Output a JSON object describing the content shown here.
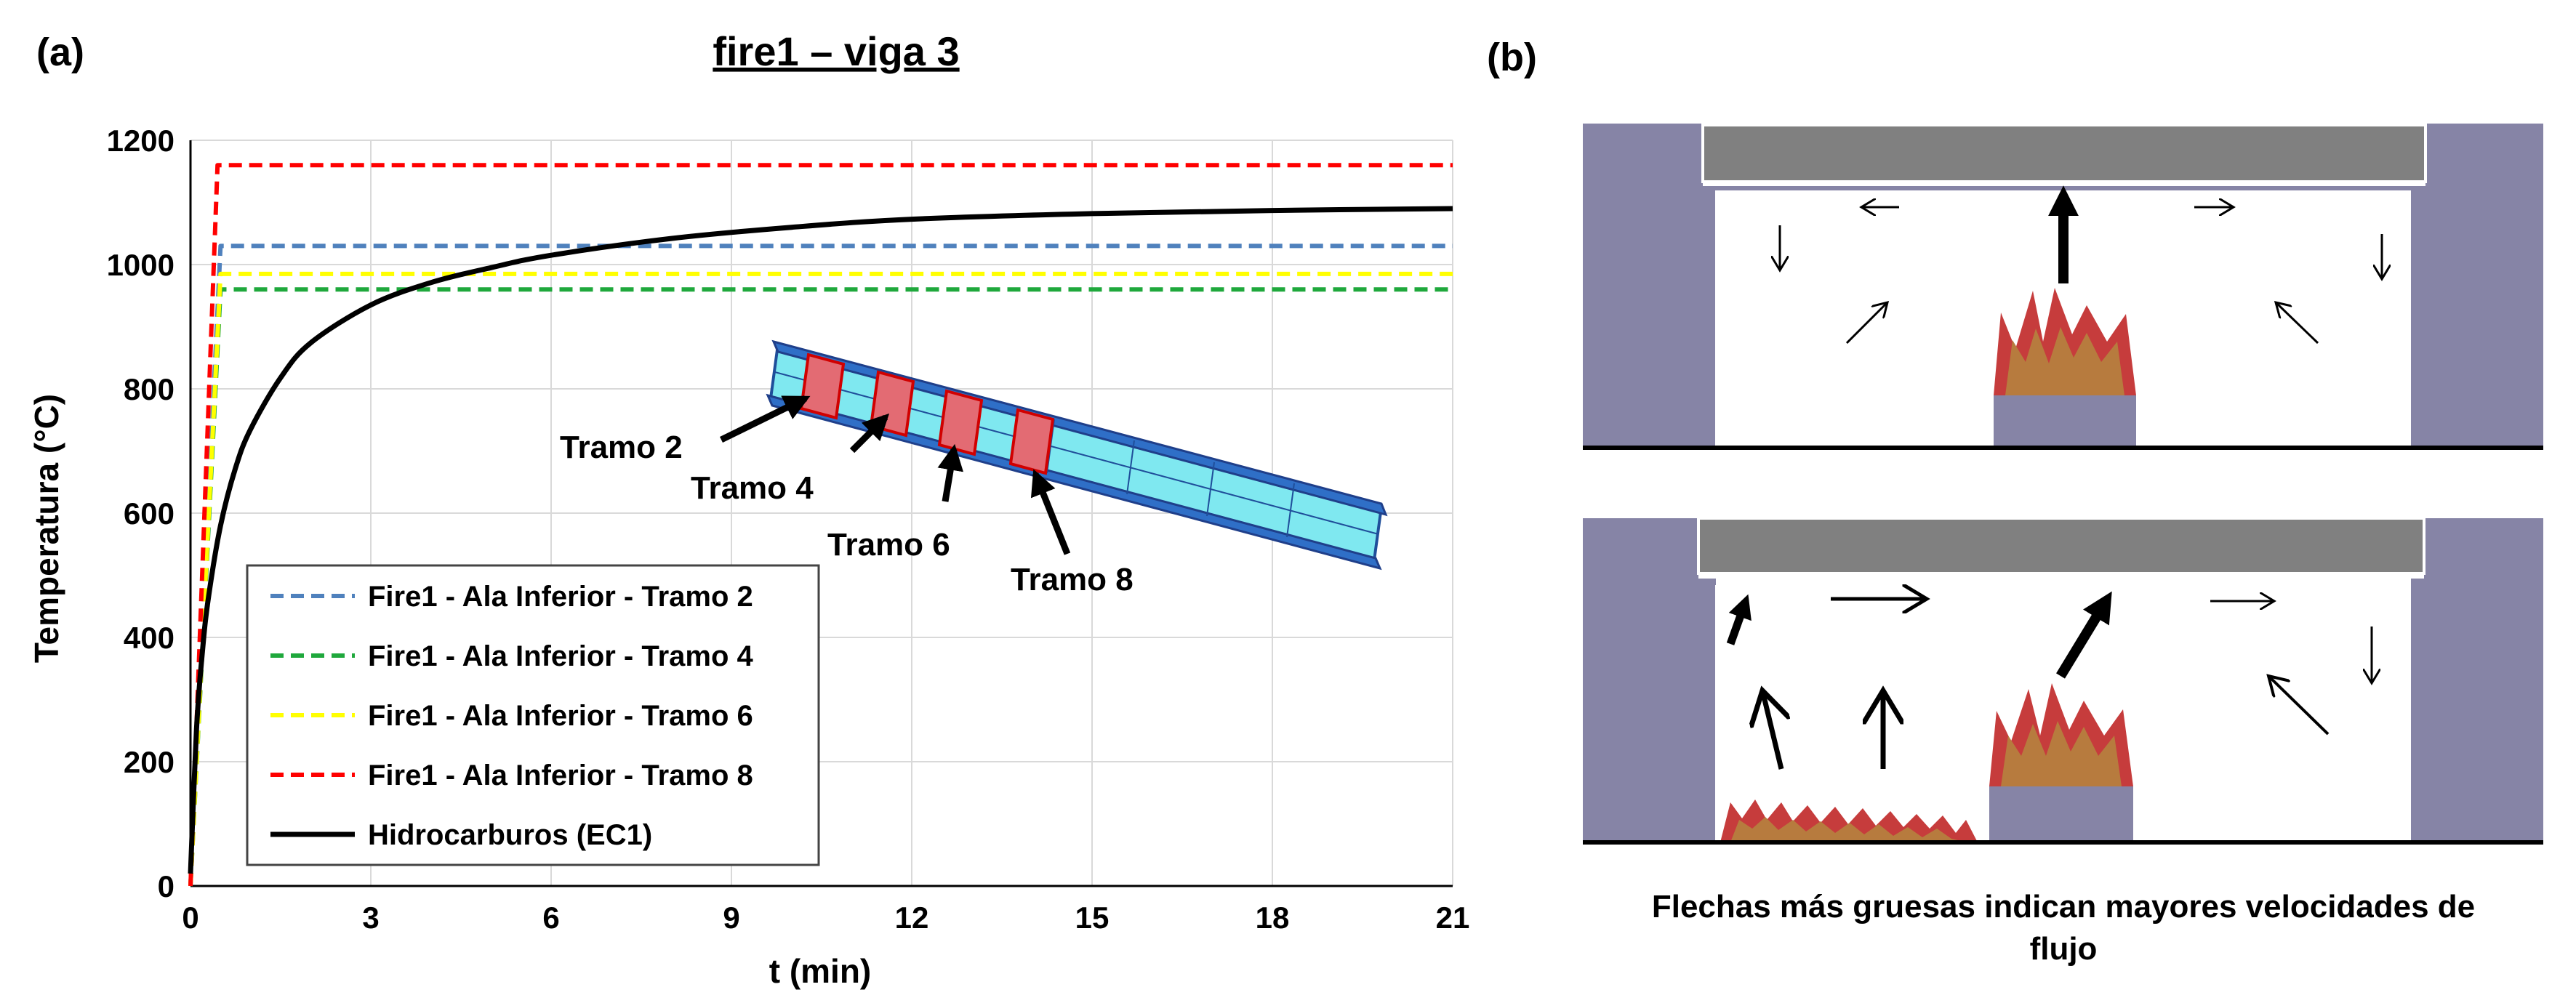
{
  "panels": {
    "a_label": "(a)",
    "b_label": "(b)"
  },
  "chart_data": {
    "type": "line",
    "title": "fire1 – viga 3",
    "xlabel": "t (min)",
    "ylabel": "Temperatura (°C)",
    "xlim": [
      0,
      21
    ],
    "ylim": [
      0,
      1200
    ],
    "xticks": [
      0,
      3,
      6,
      9,
      12,
      15,
      18,
      21
    ],
    "yticks": [
      0,
      200,
      400,
      600,
      800,
      1000,
      1200
    ],
    "grid": true,
    "legend_placement": "bottom-left",
    "series": [
      {
        "name": "Fire1 - Ala Inferior - Tramo 2",
        "color": "#4f81bd",
        "dash": "dashed",
        "x": [
          0,
          0.5,
          21
        ],
        "y": [
          0,
          1030,
          1030
        ]
      },
      {
        "name": "Fire1 - Ala Inferior - Tramo 4",
        "color": "#1fa83c",
        "dash": "dashed",
        "x": [
          0,
          0.5,
          21
        ],
        "y": [
          0,
          960,
          960
        ]
      },
      {
        "name": "Fire1 - Ala Inferior - Tramo 6",
        "color": "#ffff00",
        "dash": "dashed",
        "x": [
          0,
          0.5,
          21
        ],
        "y": [
          0,
          985,
          985
        ]
      },
      {
        "name": "Fire1 - Ala Inferior - Tramo 8",
        "color": "#ff0000",
        "dash": "dashed",
        "x": [
          0,
          0.45,
          21
        ],
        "y": [
          0,
          1160,
          1160
        ]
      },
      {
        "name": "Hidrocarburos (EC1)",
        "color": "#000000",
        "dash": "solid",
        "x": [
          0,
          0.1,
          0.2,
          0.3,
          0.5,
          0.75,
          1,
          1.5,
          2,
          3,
          4,
          5,
          6,
          8,
          10,
          12,
          15,
          18,
          21
        ],
        "y": [
          20,
          252,
          379,
          465,
          580,
          673,
          735,
          818,
          874,
          935,
          971,
          995,
          1015,
          1042,
          1060,
          1073,
          1082,
          1087,
          1090
        ]
      }
    ]
  },
  "inset": {
    "labels": [
      "Tramo 2",
      "Tramo 4",
      "Tramo 6",
      "Tramo 8"
    ]
  },
  "caption": {
    "line1": "Flechas más gruesas indican mayores velocidades de",
    "line2": "flujo"
  }
}
